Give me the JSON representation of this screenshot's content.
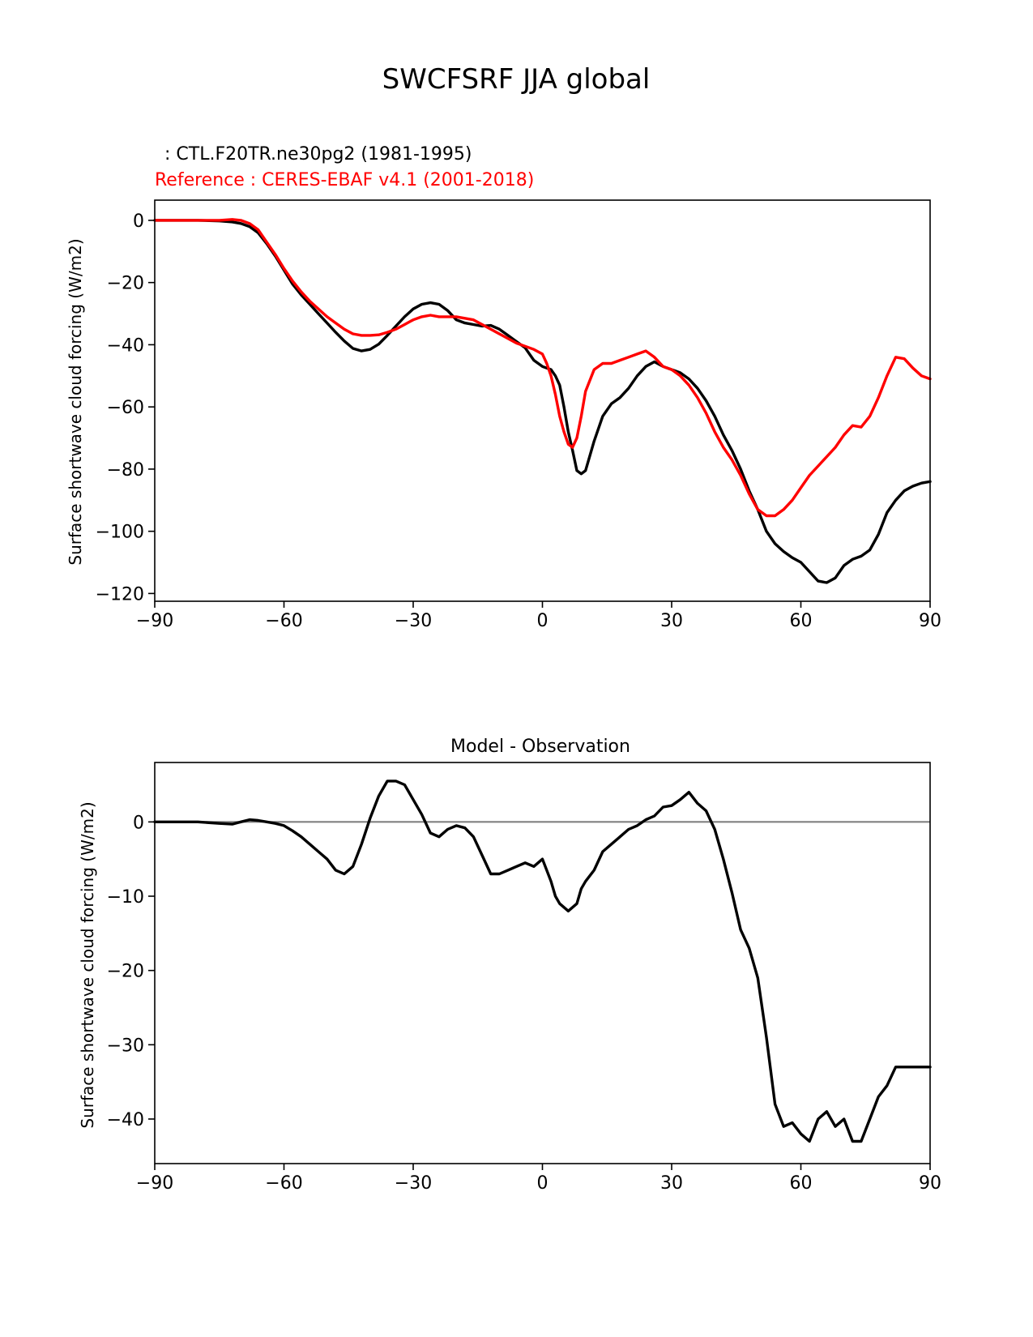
{
  "figure": {
    "title": "SWCFSRF JJA global",
    "model_label": " : CTL.F20TR.ne30pg2 (1981-1995)",
    "reference_label": "Reference : CERES-EBAF v4.1 (2001-2018)"
  },
  "colors": {
    "model": "#000000",
    "reference": "#ff0000",
    "zero_line": "#808080",
    "axes": "#000000"
  },
  "chart_data": [
    {
      "type": "line",
      "title": "",
      "xlabel": "",
      "ylabel": "Surface shortwave cloud forcing (W/m2)",
      "xlim": [
        -90,
        90
      ],
      "ylim": [
        -122.5,
        6.5
      ],
      "xticks": [
        -90,
        -60,
        -30,
        0,
        30,
        60,
        90
      ],
      "yticks": [
        0,
        -20,
        -40,
        -60,
        -80,
        -100,
        -120
      ],
      "series": [
        {
          "name": "CTL.F20TR.ne30pg2 (1981-1995)",
          "color": "#000000",
          "x": [
            -90,
            -85,
            -80,
            -75,
            -72,
            -70,
            -68,
            -66,
            -64,
            -62,
            -60,
            -58,
            -56,
            -54,
            -52,
            -50,
            -48,
            -46,
            -44,
            -42,
            -40,
            -38,
            -36,
            -34,
            -32,
            -30,
            -28,
            -26,
            -24,
            -22,
            -20,
            -18,
            -16,
            -14,
            -12,
            -10,
            -8,
            -6,
            -4,
            -2,
            0,
            2,
            3,
            4,
            5,
            6,
            7,
            8,
            9,
            10,
            12,
            14,
            16,
            18,
            20,
            22,
            24,
            26,
            28,
            30,
            32,
            34,
            36,
            38,
            40,
            42,
            44,
            46,
            48,
            50,
            52,
            54,
            56,
            58,
            60,
            62,
            64,
            66,
            68,
            70,
            72,
            74,
            76,
            78,
            80,
            82,
            84,
            86,
            88,
            90
          ],
          "y": [
            0,
            0,
            0,
            -0.2,
            -0.5,
            -1,
            -2,
            -4,
            -7.5,
            -11.5,
            -16,
            -20.5,
            -24,
            -27,
            -30,
            -33,
            -36,
            -38.8,
            -41.2,
            -42,
            -41.5,
            -39.8,
            -37,
            -34,
            -31,
            -28.5,
            -27,
            -26.5,
            -27,
            -29,
            -32,
            -33,
            -33.5,
            -34,
            -33.8,
            -35,
            -37,
            -39,
            -41,
            -45,
            -47,
            -48,
            -50,
            -53,
            -60,
            -68,
            -74,
            -80.5,
            -81.5,
            -80.5,
            -71,
            -63,
            -59,
            -57,
            -54,
            -50,
            -47,
            -45.5,
            -47,
            -48,
            -49,
            -51,
            -54,
            -58,
            -63,
            -69,
            -74,
            -80,
            -87,
            -93,
            -100,
            -104,
            -106.5,
            -108.5,
            -110,
            -113,
            -116,
            -116.5,
            -115,
            -111,
            -109,
            -108,
            -106,
            -101,
            -94,
            -90,
            -87,
            -85.5,
            -84.5,
            -84
          ]
        },
        {
          "name": "CERES-EBAF v4.1 (2001-2018)",
          "color": "#ff0000",
          "x": [
            -90,
            -85,
            -80,
            -75,
            -72,
            -70,
            -68,
            -66,
            -64,
            -62,
            -60,
            -58,
            -56,
            -54,
            -52,
            -50,
            -48,
            -46,
            -44,
            -42,
            -40,
            -38,
            -36,
            -34,
            -32,
            -30,
            -28,
            -26,
            -24,
            -22,
            -20,
            -18,
            -16,
            -14,
            -12,
            -10,
            -8,
            -6,
            -4,
            -2,
            0,
            1,
            2,
            3,
            4,
            5,
            6,
            7,
            8,
            9,
            10,
            12,
            14,
            16,
            18,
            20,
            22,
            24,
            26,
            28,
            30,
            32,
            34,
            36,
            38,
            40,
            42,
            44,
            46,
            48,
            50,
            52,
            54,
            56,
            58,
            60,
            62,
            64,
            66,
            68,
            70,
            72,
            74,
            76,
            78,
            80,
            82,
            84,
            86,
            88,
            90
          ],
          "y": [
            0,
            0,
            0,
            0,
            0.3,
            0,
            -1,
            -3,
            -7,
            -11,
            -15.5,
            -19.5,
            -23,
            -26,
            -28.5,
            -31,
            -33,
            -35,
            -36.5,
            -37,
            -37,
            -36.8,
            -36,
            -35,
            -33.5,
            -32,
            -31,
            -30.5,
            -31,
            -31,
            -31,
            -31.5,
            -32,
            -33.5,
            -35,
            -36.5,
            -38,
            -39.5,
            -40.5,
            -41.5,
            -43,
            -46,
            -50,
            -56,
            -63,
            -68,
            -72,
            -73,
            -70,
            -63,
            -55,
            -48,
            -46,
            -46,
            -45,
            -44,
            -43,
            -42,
            -44,
            -47,
            -48,
            -50,
            -53,
            -57,
            -62,
            -68,
            -73,
            -77,
            -82,
            -88,
            -93,
            -95,
            -95,
            -93,
            -90,
            -86,
            -82,
            -79,
            -76,
            -73,
            -69,
            -66,
            -66.5,
            -63,
            -57,
            -50,
            -44,
            -44.5,
            -47.5,
            -50,
            -51
          ]
        }
      ]
    },
    {
      "type": "line",
      "title": "Model - Observation",
      "xlabel": "",
      "ylabel": "Surface shortwave cloud forcing (W/m2)",
      "xlim": [
        -90,
        90
      ],
      "ylim": [
        -46,
        8
      ],
      "xticks": [
        -90,
        -60,
        -30,
        0,
        30,
        60,
        90
      ],
      "yticks": [
        0,
        -10,
        -20,
        -30,
        -40
      ],
      "zero_line": true,
      "series": [
        {
          "name": "Model - Observation",
          "color": "#000000",
          "x": [
            -90,
            -85,
            -80,
            -75,
            -72,
            -70,
            -68,
            -66,
            -64,
            -62,
            -60,
            -58,
            -56,
            -54,
            -52,
            -50,
            -48,
            -46,
            -44,
            -42,
            -40,
            -38,
            -36,
            -34,
            -32,
            -30,
            -28,
            -26,
            -24,
            -22,
            -20,
            -18,
            -16,
            -14,
            -12,
            -10,
            -8,
            -6,
            -4,
            -2,
            0,
            2,
            3,
            4,
            6,
            8,
            9,
            10,
            12,
            14,
            16,
            18,
            20,
            22,
            24,
            26,
            28,
            30,
            32,
            34,
            36,
            38,
            40,
            42,
            44,
            46,
            48,
            50,
            52,
            54,
            56,
            58,
            60,
            62,
            64,
            66,
            68,
            70,
            72,
            74,
            76,
            78,
            80,
            82,
            84,
            86,
            88,
            90
          ],
          "y": [
            0,
            0,
            0,
            -0.2,
            -0.3,
            0,
            0.3,
            0.2,
            0,
            -0.2,
            -0.5,
            -1.2,
            -2,
            -3,
            -4,
            -5,
            -6.5,
            -7,
            -6,
            -3,
            0.5,
            3.5,
            5.5,
            5.5,
            5,
            3,
            1,
            -1.5,
            -2,
            -1,
            -0.5,
            -0.8,
            -2,
            -4.5,
            -7,
            -7,
            -6.5,
            -6,
            -5.5,
            -6,
            -5,
            -8,
            -10,
            -11,
            -12,
            -11,
            -9,
            -8,
            -6.5,
            -4,
            -3,
            -2,
            -1,
            -0.5,
            0.3,
            0.8,
            2,
            2.2,
            3,
            4,
            2.5,
            1.5,
            -1,
            -5,
            -9.5,
            -14.5,
            -17,
            -21,
            -29,
            -38,
            -41,
            -40.5,
            -42,
            -43,
            -40,
            -39,
            -41,
            -40,
            -43,
            -43,
            -40,
            -37,
            -35.5,
            -33,
            -33,
            -33,
            -33,
            -33
          ]
        }
      ]
    }
  ]
}
